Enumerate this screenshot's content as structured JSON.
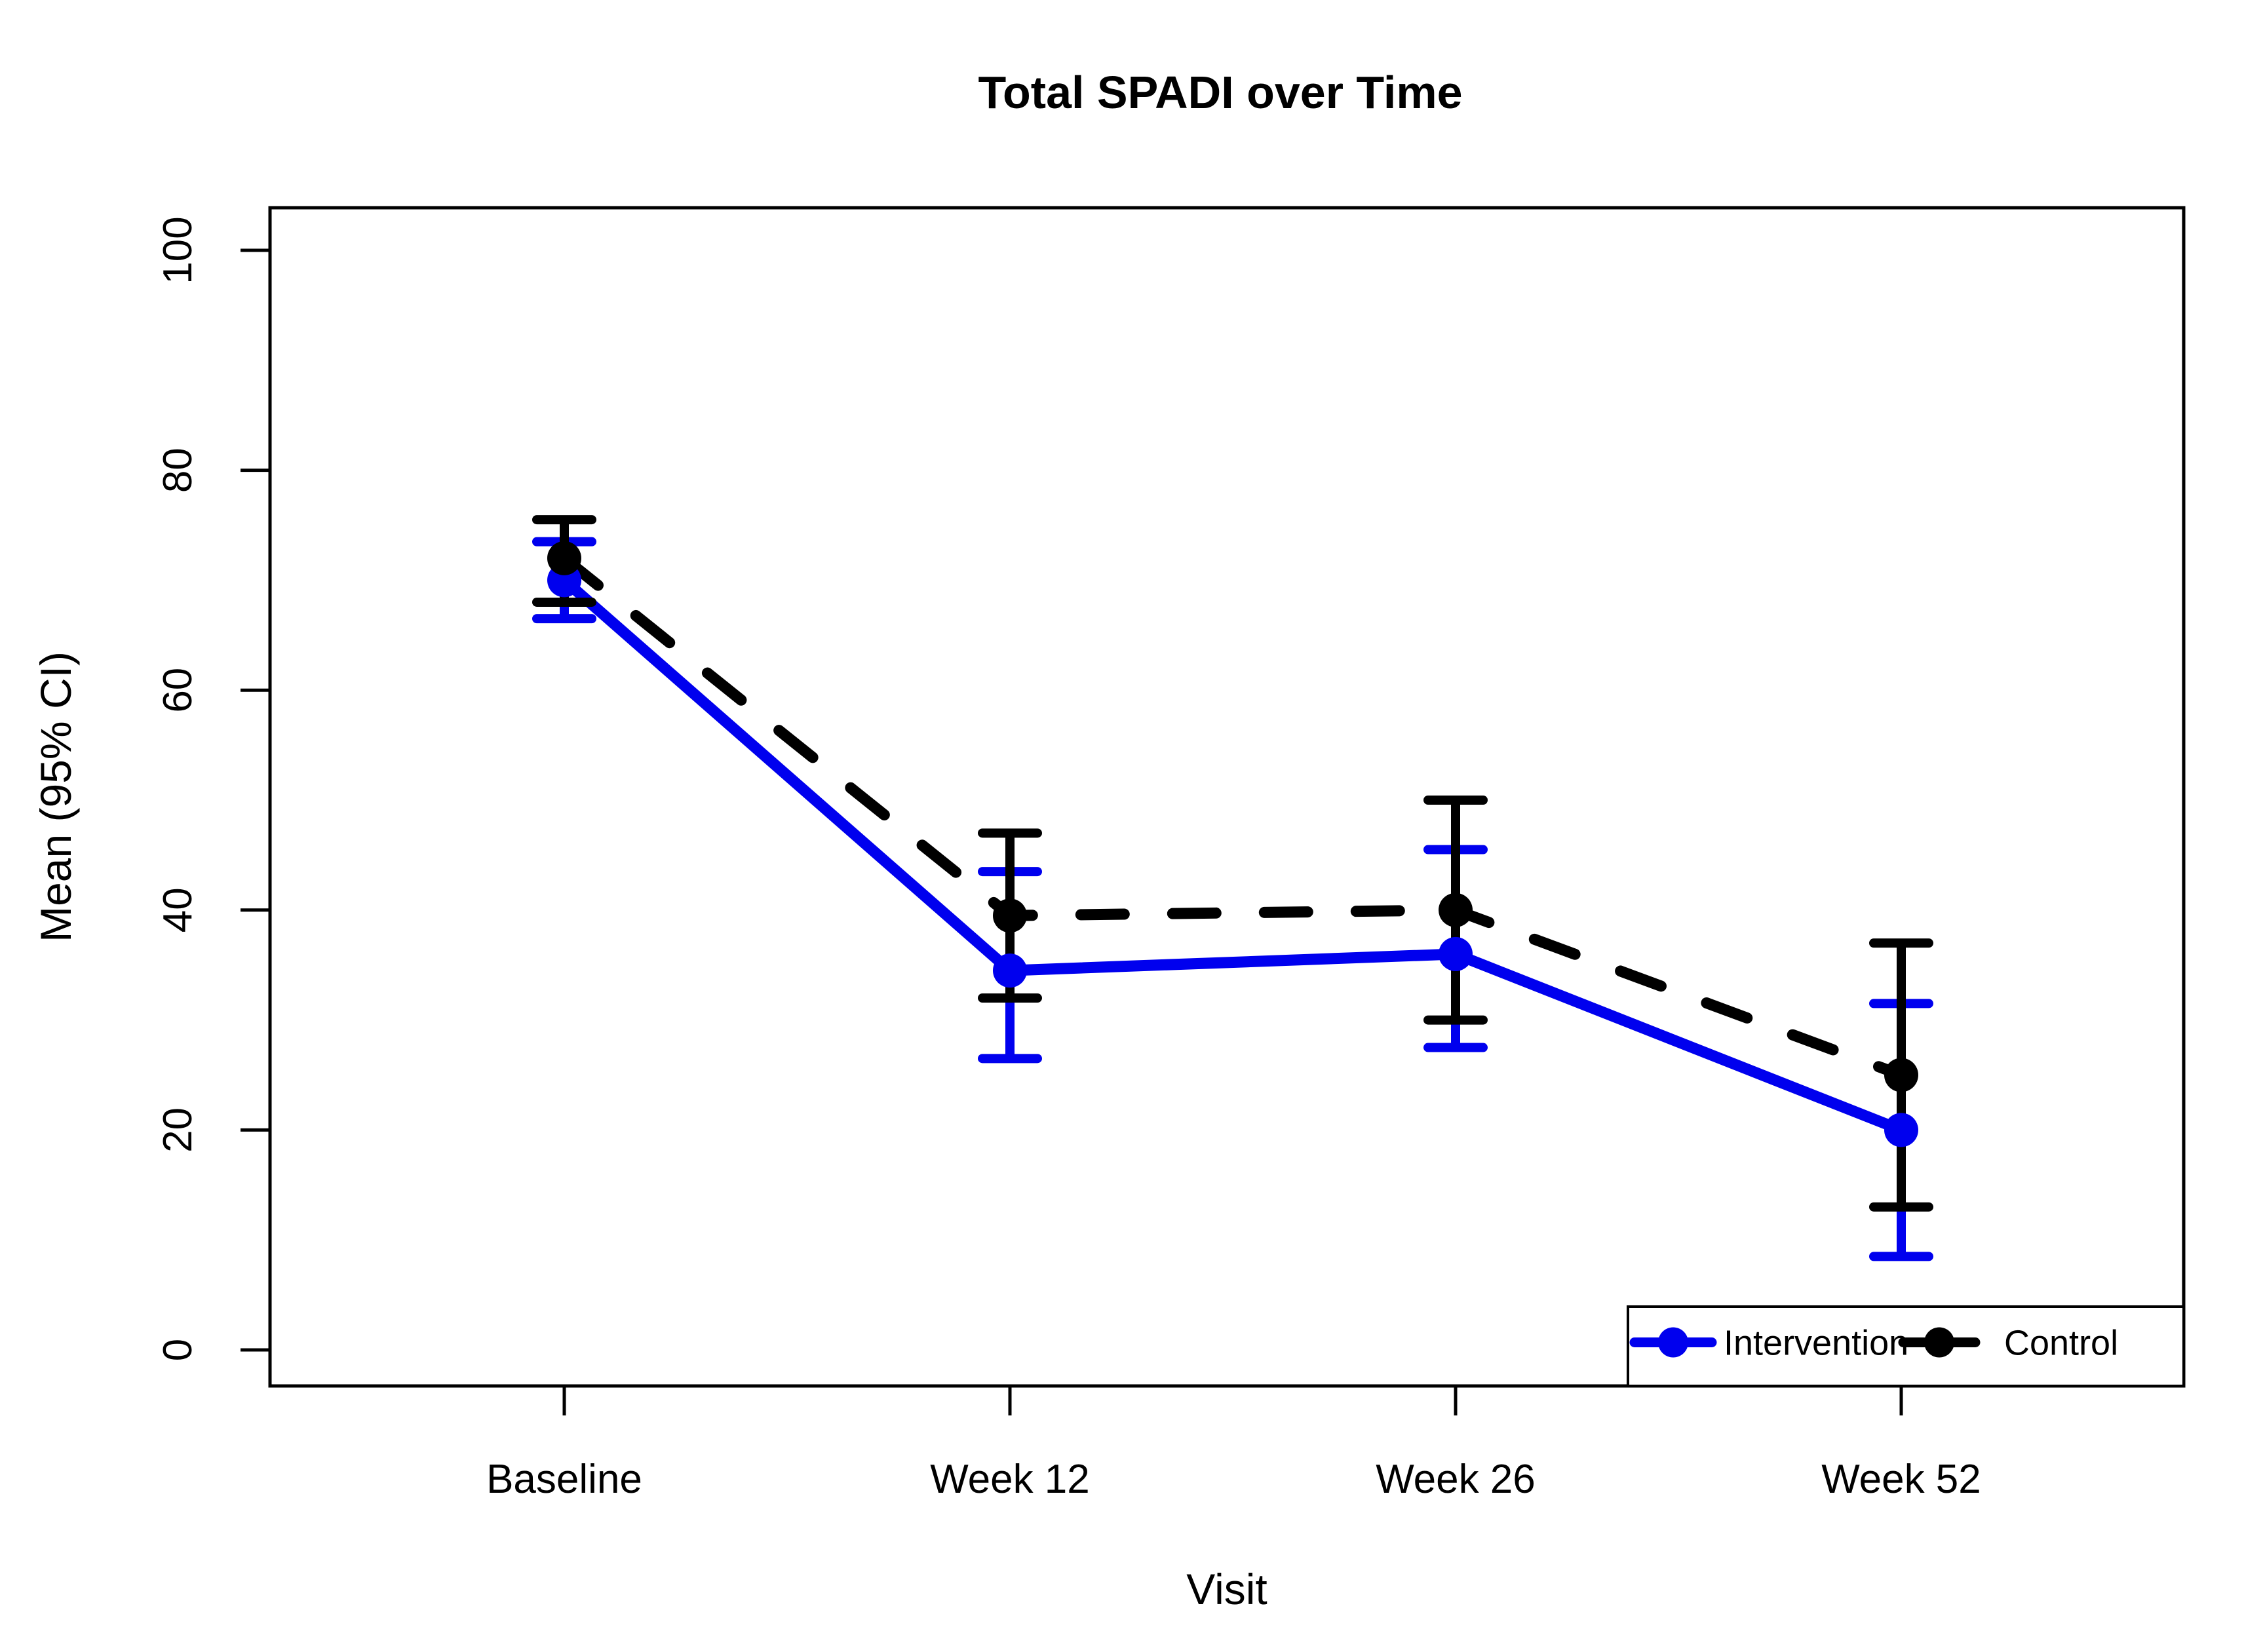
{
  "chart_data": {
    "type": "line",
    "title": "Total SPADI over Time",
    "xlabel": "Visit",
    "ylabel": "Mean (95% CI)",
    "categories": [
      "Baseline",
      "Week 12",
      "Week 26",
      "Week 52"
    ],
    "y_ticks": [
      0,
      20,
      40,
      60,
      80,
      100
    ],
    "ylim": [
      0,
      100
    ],
    "grid": false,
    "error_bars": "95% CI",
    "legend_position": "bottom-right-inside",
    "series": [
      {
        "name": "Intervention",
        "color": "#0000ee",
        "line_style": "solid",
        "marker": "filled-circle",
        "means": [
          70.0,
          34.5,
          36.0,
          20.0
        ],
        "ci_low": [
          66.5,
          26.5,
          27.5,
          8.5
        ],
        "ci_high": [
          73.5,
          43.5,
          45.5,
          31.5
        ]
      },
      {
        "name": "Control",
        "color": "#000000",
        "line_style": "dashed",
        "marker": "filled-circle",
        "means": [
          72.0,
          39.5,
          40.0,
          25.0
        ],
        "ci_low": [
          68.0,
          32.0,
          30.0,
          13.0
        ],
        "ci_high": [
          75.5,
          47.0,
          50.0,
          37.0
        ]
      }
    ]
  }
}
